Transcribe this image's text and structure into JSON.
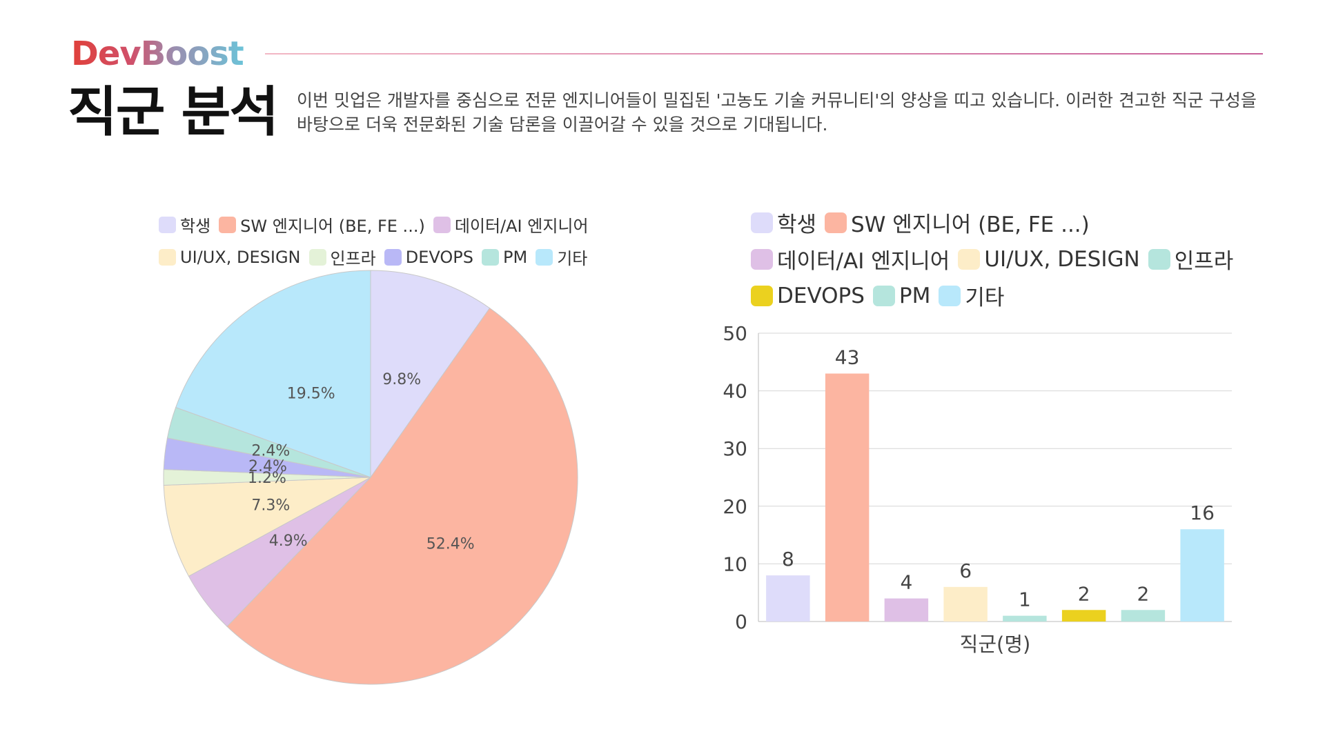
{
  "header": {
    "logo": "DevBoost",
    "title": "직군 분석",
    "description": "이번 밋업은 개발자를 중심으로 전문 엔지니어들이 밀집된 '고농도 기술 커뮤니티'의 양상을 띠고 있습니다. 이러한 견고한 직군 구성을 바탕으로 더욱 전문화된 기술 담론을 이끌어갈 수 있을 것으로 기대됩니다."
  },
  "chart_data": [
    {
      "type": "pie",
      "title": "",
      "categories": [
        "학생",
        "SW 엔지니어 (BE, FE ...)",
        "데이터/AI 엔지니어",
        "UI/UX, DESIGN",
        "인프라",
        "DEVOPS",
        "PM",
        "기타"
      ],
      "values": [
        8,
        43,
        4,
        6,
        1,
        2,
        2,
        16
      ],
      "labels": [
        "9.8%",
        "52.4%",
        "4.9%",
        "7.3%",
        "1.2%",
        "2.4%",
        "2.4%",
        "19.5%"
      ],
      "colors": [
        "#dedcfa",
        "#fcb5a1",
        "#dfc0e6",
        "#fdedc8",
        "#e4f2d8",
        "#b9b8f6",
        "#b5e5dd",
        "#b8e8fb"
      ],
      "legend_position": "top"
    },
    {
      "type": "bar",
      "title": "",
      "categories": [
        "학생",
        "SW 엔지니어 (BE, FE ...)",
        "데이터/AI 엔지니어",
        "UI/UX, DESIGN",
        "인프라",
        "DEVOPS",
        "PM",
        "기타"
      ],
      "values": [
        8,
        43,
        4,
        6,
        1,
        2,
        2,
        16
      ],
      "colors": [
        "#dedcfa",
        "#fcb5a1",
        "#dfc0e6",
        "#fdedc8",
        "#b5e5dd",
        "#ebd11f",
        "#b5e5dd",
        "#b8e8fb"
      ],
      "xlabel": "직군(명)",
      "ylabel": "",
      "ylim": [
        0,
        50
      ],
      "yticks": [
        "0",
        "10",
        "20",
        "30",
        "40",
        "50"
      ],
      "grid": true,
      "legend_position": "top"
    }
  ]
}
